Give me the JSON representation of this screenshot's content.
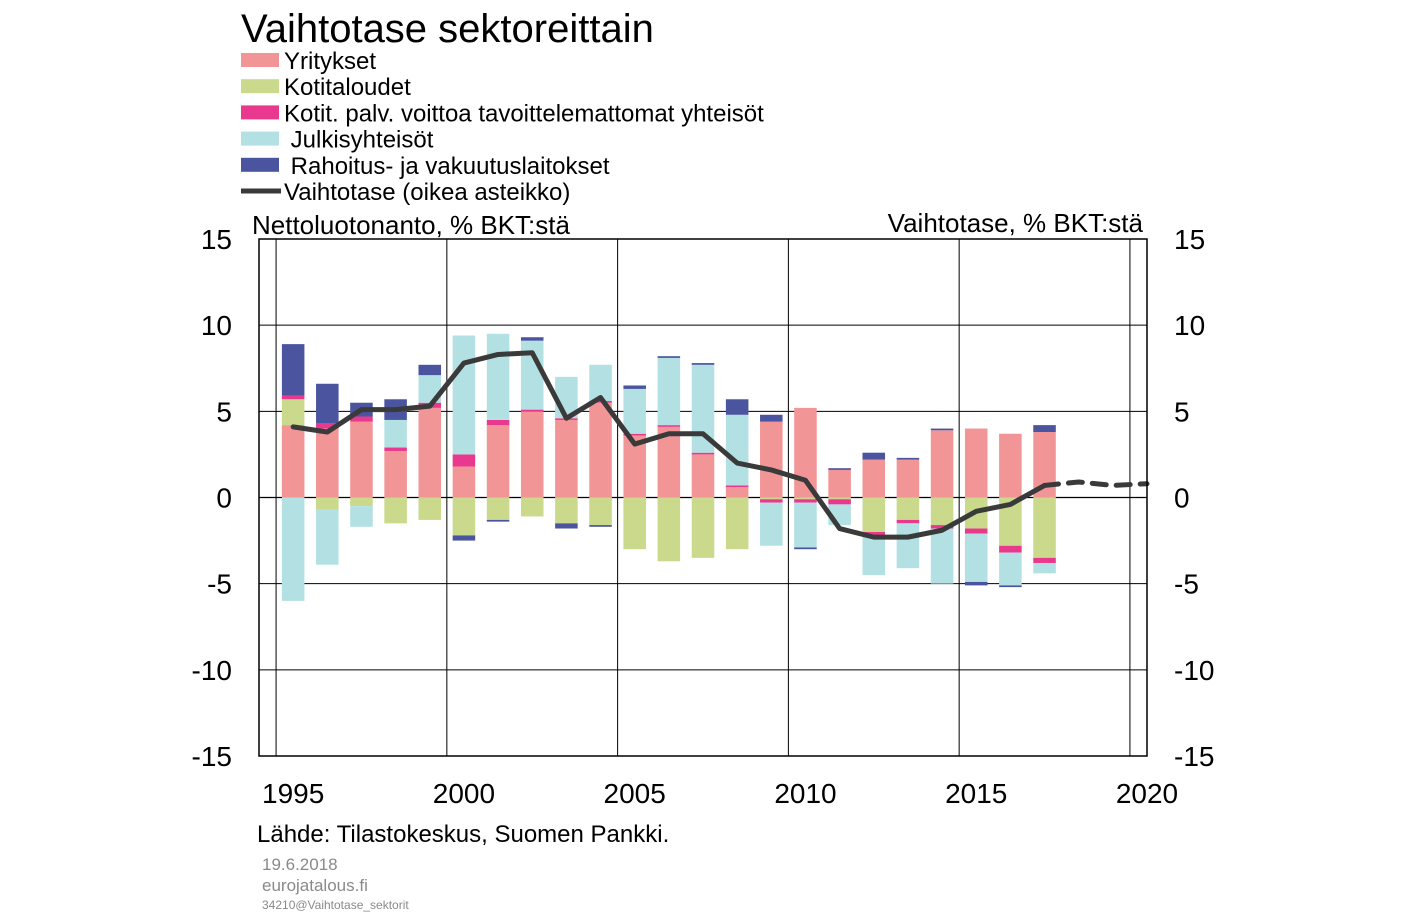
{
  "chart_data": {
    "type": "bar",
    "title": "Vaihtotase sektoreittain",
    "ylabel_left": "Nettoluotonanto, % BKT:stä",
    "ylabel_right": "Vaihtotase, % BKT:stä",
    "ylim": [
      -15,
      15
    ],
    "yticks": [
      15,
      10,
      5,
      0,
      -5,
      -10,
      -15
    ],
    "xlim": [
      1994,
      2020
    ],
    "xticks": [
      1995,
      2000,
      2005,
      2010,
      2015,
      2020
    ],
    "categories": [
      1995,
      1996,
      1997,
      1998,
      1999,
      2000,
      2001,
      2002,
      2003,
      2004,
      2005,
      2006,
      2007,
      2008,
      2009,
      2010,
      2011,
      2012,
      2013,
      2014,
      2015,
      2016,
      2017
    ],
    "series": [
      {
        "name": "Yritykset",
        "color": "#f29596",
        "values": [
          4.2,
          4.0,
          4.4,
          2.7,
          5.2,
          1.8,
          4.2,
          5.0,
          4.5,
          5.5,
          3.6,
          4.1,
          2.5,
          0.6,
          4.4,
          5.2,
          1.6,
          2.2,
          2.2,
          3.9,
          4.0,
          3.7,
          3.8
        ]
      },
      {
        "name": "Kotitaloudet",
        "color": "#cad98b",
        "values": [
          1.5,
          -0.7,
          -0.5,
          -1.5,
          -1.3,
          -2.2,
          -1.3,
          -1.1,
          -1.5,
          -1.6,
          -3.0,
          -3.7,
          -3.5,
          -3.0,
          -0.1,
          -0.1,
          -0.1,
          -2.0,
          -1.3,
          -1.6,
          -1.8,
          -2.8,
          -3.5
        ]
      },
      {
        "name": "Kotit. palv. voittoa tavoittelemattomat yhteisöt",
        "color": "#e8398f",
        "values": [
          0.2,
          0.3,
          0.3,
          0.2,
          0.3,
          0.7,
          0.3,
          0.1,
          0.1,
          0.1,
          0.1,
          0.1,
          0.1,
          0.1,
          -0.2,
          -0.2,
          -0.3,
          -0.3,
          -0.2,
          -0.2,
          -0.3,
          -0.4,
          -0.3
        ]
      },
      {
        "name": "Julkisyhteisöt",
        "color": "#b3e1e3",
        "values": [
          -6.0,
          -3.2,
          -1.2,
          1.6,
          1.6,
          6.9,
          5.0,
          4.0,
          2.4,
          2.1,
          2.6,
          3.9,
          5.1,
          4.1,
          -2.5,
          -2.6,
          -1.2,
          -2.2,
          -2.6,
          -3.2,
          -2.8,
          -1.9,
          -0.6
        ]
      },
      {
        "name": "Rahoitus- ja vakuutuslaitokset",
        "color": "#4b559f",
        "values": [
          3.0,
          2.3,
          0.8,
          1.2,
          0.6,
          -0.3,
          -0.1,
          0.2,
          -0.3,
          -0.1,
          0.2,
          0.1,
          0.1,
          0.9,
          0.4,
          -0.1,
          0.1,
          0.4,
          0.1,
          0.1,
          -0.2,
          -0.1,
          0.4
        ]
      },
      {
        "name": "Vaihtotase (oikea asteikko)",
        "color": "#3a3a3a",
        "type": "line",
        "x": [
          1995,
          1996,
          1997,
          1998,
          1999,
          2000,
          2001,
          2002,
          2003,
          2004,
          2005,
          2006,
          2007,
          2008,
          2009,
          2010,
          2011,
          2012,
          2013,
          2014,
          2015,
          2016,
          2017
        ],
        "values": [
          4.1,
          3.8,
          5.1,
          5.1,
          5.3,
          7.8,
          8.3,
          8.4,
          4.6,
          5.8,
          3.1,
          3.7,
          3.7,
          2.0,
          1.6,
          1.0,
          -1.8,
          -2.3,
          -2.3,
          -1.9,
          -0.8,
          -0.4,
          0.7
        ]
      },
      {
        "name": "",
        "color": "#3a3a3a",
        "type": "line",
        "dashed": true,
        "x": [
          2017,
          2018,
          2019,
          2020
        ],
        "values": [
          0.7,
          0.9,
          0.7,
          0.8
        ]
      }
    ],
    "legend_position": "top-left",
    "grid": true
  },
  "legend": [
    {
      "label": "Yritykset",
      "color": "#f29596",
      "kind": "box"
    },
    {
      "label": "Kotitaloudet",
      "color": "#cad98b",
      "kind": "box"
    },
    {
      "label": "Kotit. palv. voittoa tavoittelemattomat yhteisöt",
      "color": "#e8398f",
      "kind": "box"
    },
    {
      "label": " Julkisyhteisöt",
      "color": "#b3e1e3",
      "kind": "box"
    },
    {
      "label": " Rahoitus- ja vakuutuslaitokset",
      "color": "#4b559f",
      "kind": "box"
    },
    {
      "label": "Vaihtotase (oikea asteikko)",
      "color": "#3a3a3a",
      "kind": "line"
    }
  ],
  "footer": {
    "source": "Lähde: Tilastokeskus, Suomen Pankki.",
    "date": "19.6.2018",
    "site": "eurojatalous.fi",
    "code": "34210@Vaihtotase_sektorit"
  }
}
